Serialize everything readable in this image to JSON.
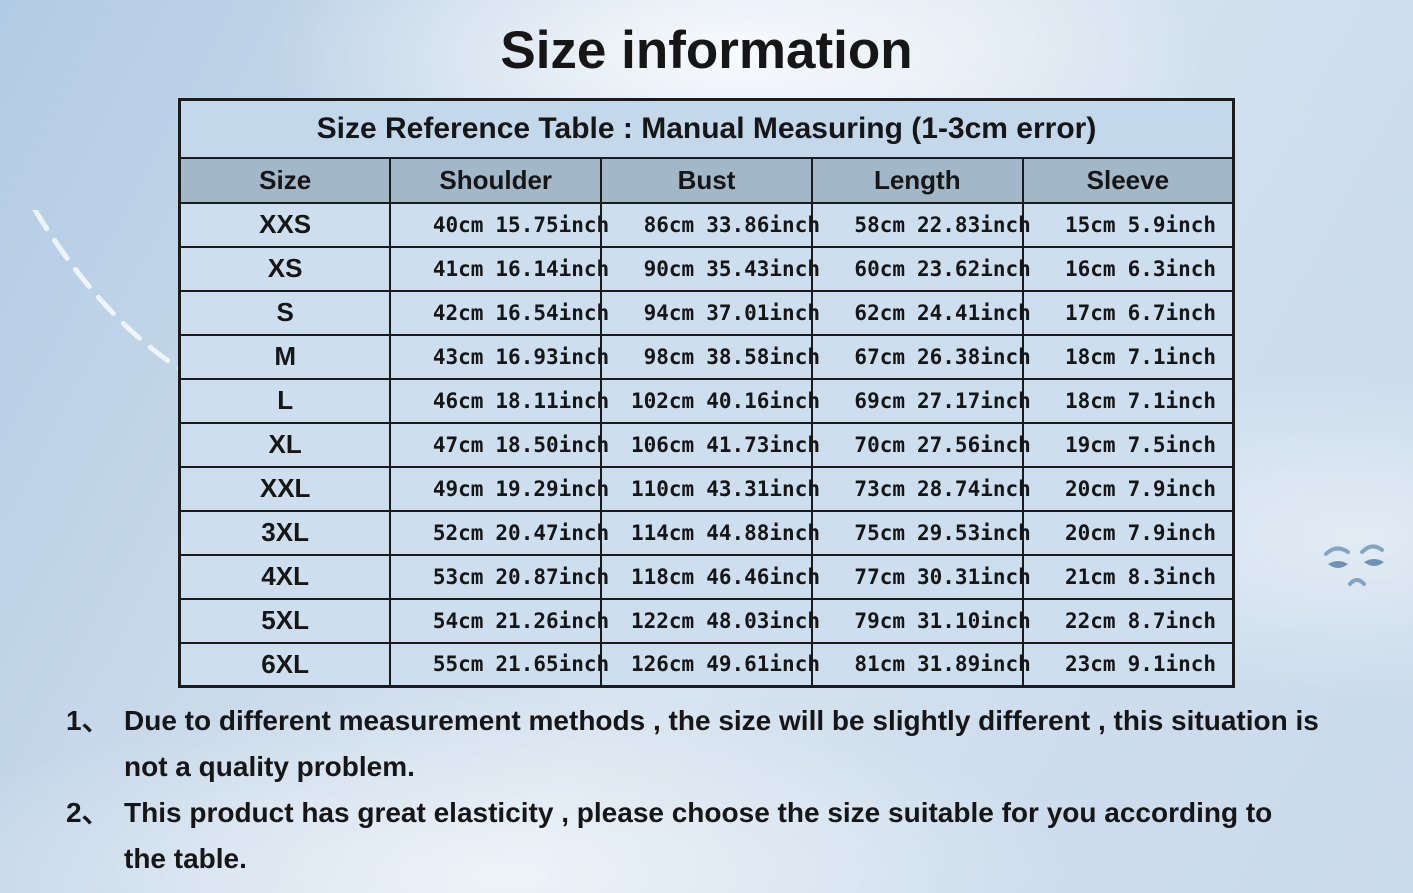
{
  "page": {
    "title": "Size information"
  },
  "table": {
    "caption": "Size Reference Table : Manual Measuring (1-3cm error)",
    "columns": [
      "Size",
      "Shoulder",
      "Bust",
      "Length",
      "Sleeve"
    ],
    "rows": [
      {
        "size": "XXS",
        "measurements": [
          [
            "40cm",
            "15.75inch"
          ],
          [
            "86cm",
            "33.86inch"
          ],
          [
            "58cm",
            "22.83inch"
          ],
          [
            "15cm",
            "5.9inch"
          ]
        ]
      },
      {
        "size": "XS",
        "measurements": [
          [
            "41cm",
            "16.14inch"
          ],
          [
            "90cm",
            "35.43inch"
          ],
          [
            "60cm",
            "23.62inch"
          ],
          [
            "16cm",
            "6.3inch"
          ]
        ]
      },
      {
        "size": "S",
        "measurements": [
          [
            "42cm",
            "16.54inch"
          ],
          [
            "94cm",
            "37.01inch"
          ],
          [
            "62cm",
            "24.41inch"
          ],
          [
            "17cm",
            "6.7inch"
          ]
        ]
      },
      {
        "size": "M",
        "measurements": [
          [
            "43cm",
            "16.93inch"
          ],
          [
            "98cm",
            "38.58inch"
          ],
          [
            "67cm",
            "26.38inch"
          ],
          [
            "18cm",
            "7.1inch"
          ]
        ]
      },
      {
        "size": "L",
        "measurements": [
          [
            "46cm",
            "18.11inch"
          ],
          [
            "102cm",
            "40.16inch"
          ],
          [
            "69cm",
            "27.17inch"
          ],
          [
            "18cm",
            "7.1inch"
          ]
        ]
      },
      {
        "size": "XL",
        "measurements": [
          [
            "47cm",
            "18.50inch"
          ],
          [
            "106cm",
            "41.73inch"
          ],
          [
            "70cm",
            "27.56inch"
          ],
          [
            "19cm",
            "7.5inch"
          ]
        ]
      },
      {
        "size": "XXL",
        "measurements": [
          [
            "49cm",
            "19.29inch"
          ],
          [
            "110cm",
            "43.31inch"
          ],
          [
            "73cm",
            "28.74inch"
          ],
          [
            "20cm",
            "7.9inch"
          ]
        ]
      },
      {
        "size": "3XL",
        "measurements": [
          [
            "52cm",
            "20.47inch"
          ],
          [
            "114cm",
            "44.88inch"
          ],
          [
            "75cm",
            "29.53inch"
          ],
          [
            "20cm",
            "7.9inch"
          ]
        ]
      },
      {
        "size": "4XL",
        "measurements": [
          [
            "53cm",
            "20.87inch"
          ],
          [
            "118cm",
            "46.46inch"
          ],
          [
            "77cm",
            "30.31inch"
          ],
          [
            "21cm",
            "8.3inch"
          ]
        ]
      },
      {
        "size": "5XL",
        "measurements": [
          [
            "54cm",
            "21.26inch"
          ],
          [
            "122cm",
            "48.03inch"
          ],
          [
            "79cm",
            "31.10inch"
          ],
          [
            "22cm",
            "8.7inch"
          ]
        ]
      },
      {
        "size": "6XL",
        "measurements": [
          [
            "55cm",
            "21.65inch"
          ],
          [
            "126cm",
            "49.61inch"
          ],
          [
            "81cm",
            "31.89inch"
          ],
          [
            "23cm",
            "9.1inch"
          ]
        ]
      }
    ]
  },
  "notes": [
    {
      "number": "1、",
      "text": "Due to different measurement methods , the size will be slightly different , this situation is not a quality problem."
    },
    {
      "number": "2、",
      "text": "This product has great elasticity , please choose the size suitable for you according to the table."
    }
  ],
  "colors": {
    "header_row_bg": "#a2b7c8",
    "data_row_bg": "#cddfee",
    "caption_row_bg": "#c4d8ec",
    "border": "#1b1b1b",
    "text": "#161616",
    "sky_blue": "#b2cbe4",
    "sky_light": "#e8eef6"
  }
}
